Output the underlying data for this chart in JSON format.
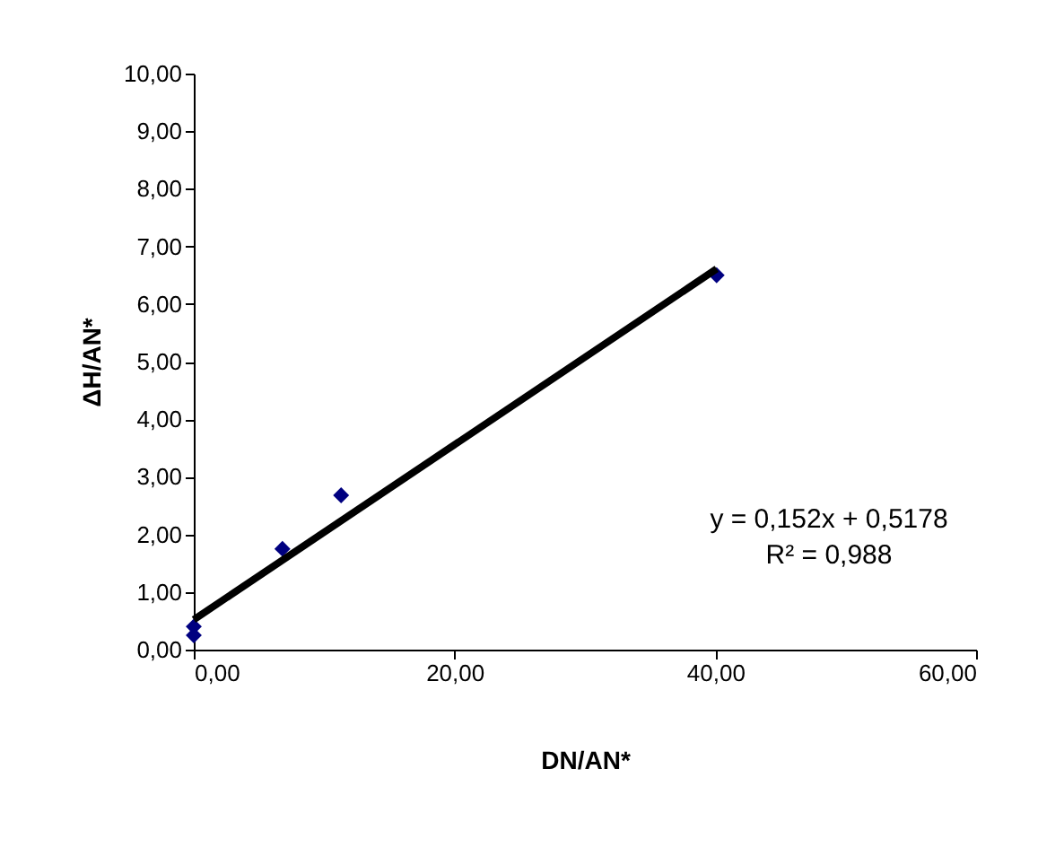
{
  "chart_data": {
    "type": "scatter",
    "xlabel": "DN/AN*",
    "ylabel": "ΔH/AN*",
    "x": [
      0,
      0,
      6.8,
      11.3,
      40.1
    ],
    "series": [
      {
        "color": "#000080",
        "values": [
          0.25,
          0.4,
          1.75,
          2.68,
          6.5
        ]
      },
      {
        "type": "line",
        "color": "#000000",
        "marker": "none",
        "x": [
          0,
          40.1
        ],
        "values": [
          0.52,
          6.61
        ]
      }
    ],
    "marker": "diamond",
    "xlim": [
      0,
      60
    ],
    "xticks": [
      {
        "value": 0,
        "label": "0,00"
      },
      {
        "value": 20,
        "label": "20,00"
      },
      {
        "value": 40,
        "label": "40,00"
      },
      {
        "value": 60,
        "label": "60,00"
      }
    ],
    "ylim": [
      0,
      10
    ],
    "yticks": [
      {
        "value": 0,
        "label": "0,00"
      },
      {
        "value": 1,
        "label": "1,00"
      },
      {
        "value": 2,
        "label": "2,00"
      },
      {
        "value": 3,
        "label": "3,00"
      },
      {
        "value": 4,
        "label": "4,00"
      },
      {
        "value": 5,
        "label": "5,00"
      },
      {
        "value": 6,
        "label": "6,00"
      },
      {
        "value": 7,
        "label": "7,00"
      },
      {
        "value": 8,
        "label": "8,00"
      },
      {
        "value": 9,
        "label": "9,00"
      },
      {
        "value": 10,
        "label": "10,00"
      }
    ],
    "annotations": [
      "y = 0,152x + 0,5178",
      "R² = 0,988"
    ]
  }
}
